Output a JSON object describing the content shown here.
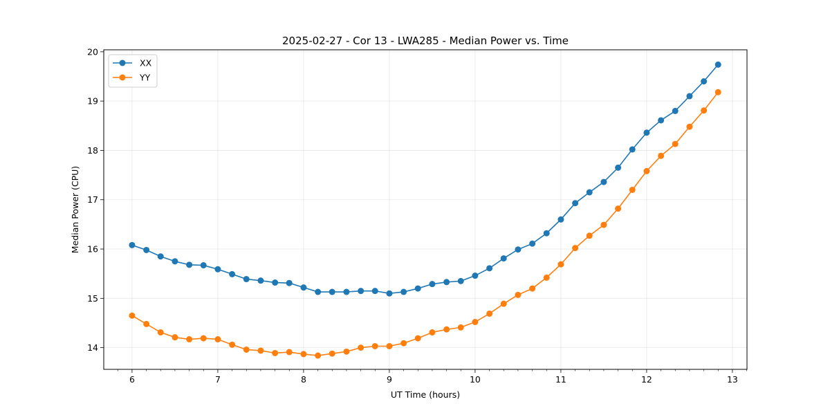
{
  "chart_data": {
    "type": "line",
    "title": "2025-02-27 - Cor 13 - LWA285 - Median Power vs. Time",
    "xlabel": "UT Time (hours)",
    "ylabel": "Median Power (CPU)",
    "xlim": [
      5.67,
      13.17
    ],
    "ylim": [
      13.56,
      20.04
    ],
    "x_ticks": [
      6,
      7,
      8,
      9,
      10,
      11,
      12,
      13
    ],
    "y_ticks": [
      14,
      15,
      16,
      17,
      18,
      19,
      20
    ],
    "grid": true,
    "legend_position": "top-left",
    "x": [
      6.0,
      6.167,
      6.333,
      6.5,
      6.667,
      6.833,
      7.0,
      7.167,
      7.333,
      7.5,
      7.667,
      7.833,
      8.0,
      8.167,
      8.333,
      8.5,
      8.667,
      8.833,
      9.0,
      9.167,
      9.333,
      9.5,
      9.667,
      9.833,
      10.0,
      10.167,
      10.333,
      10.5,
      10.667,
      10.833,
      11.0,
      11.167,
      11.333,
      11.5,
      11.667,
      11.833,
      12.0,
      12.167,
      12.333,
      12.5,
      12.667,
      12.833
    ],
    "series": [
      {
        "name": "XX",
        "color": "#1f77b4",
        "values": [
          16.08,
          15.98,
          15.85,
          15.75,
          15.68,
          15.67,
          15.59,
          15.49,
          15.39,
          15.36,
          15.32,
          15.31,
          15.22,
          15.13,
          15.13,
          15.13,
          15.15,
          15.15,
          15.1,
          15.13,
          15.2,
          15.29,
          15.33,
          15.35,
          15.46,
          15.61,
          15.81,
          15.99,
          16.11,
          16.32,
          16.6,
          16.93,
          17.15,
          17.36,
          17.65,
          18.02,
          18.36,
          18.61,
          18.8,
          19.1,
          19.4,
          19.74
        ]
      },
      {
        "name": "YY",
        "color": "#ff7f0e",
        "values": [
          14.65,
          14.48,
          14.31,
          14.21,
          14.17,
          14.19,
          14.17,
          14.06,
          13.96,
          13.94,
          13.89,
          13.91,
          13.87,
          13.84,
          13.88,
          13.92,
          14.0,
          14.03,
          14.03,
          14.09,
          14.19,
          14.31,
          14.37,
          14.41,
          14.52,
          14.69,
          14.89,
          15.07,
          15.2,
          15.42,
          15.69,
          16.02,
          16.27,
          16.49,
          16.82,
          17.2,
          17.58,
          17.89,
          18.13,
          18.48,
          18.81,
          19.18
        ]
      }
    ]
  }
}
